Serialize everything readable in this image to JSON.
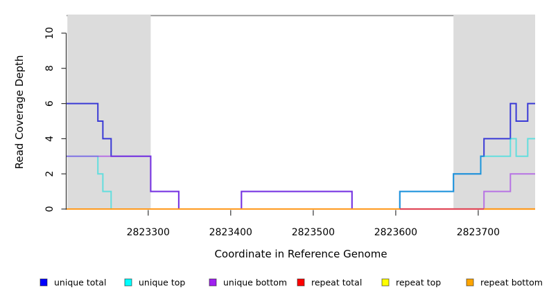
{
  "chart_data": {
    "type": "line",
    "subtype": "step-coverage",
    "title": "",
    "xlabel": "Coordinate in Reference Genome",
    "ylabel": "Read Coverage Depth",
    "xlim": [
      2823201,
      2823769
    ],
    "ylim": [
      0,
      11.06
    ],
    "x_ticks": [
      "2823300",
      "2823400",
      "2823500",
      "2823600",
      "2823700"
    ],
    "x_tick_values": [
      2823300,
      2823400,
      2823500,
      2823600,
      2823700
    ],
    "y_ticks": [
      "0",
      "2",
      "4",
      "6",
      "8",
      "10"
    ],
    "y_tick_values": [
      0,
      2,
      4,
      6,
      8,
      10
    ],
    "grid": false,
    "legend_position": "bottom",
    "max_depth_reference_line": {
      "y": 11,
      "color": "#8C8C8C"
    },
    "shaded_regions": [
      {
        "from": 2823202,
        "to": 2823303,
        "color": "#DCDCDC"
      },
      {
        "from": 2823670,
        "to": 2823769,
        "color": "#DCDCDC"
      }
    ],
    "series": [
      {
        "name": "unique total",
        "legend_color": "#0000FF",
        "line_color": "#2B2BD5",
        "line_opacity": 0.92,
        "step_points": [
          [
            2823201,
            6
          ],
          [
            2823239,
            5
          ],
          [
            2823245,
            4
          ],
          [
            2823255,
            3
          ],
          [
            2823303,
            1
          ],
          [
            2823337,
            0
          ],
          [
            2823413,
            1
          ],
          [
            2823547,
            0
          ],
          [
            2823605,
            1
          ],
          [
            2823670,
            2
          ],
          [
            2823703,
            3
          ],
          [
            2823707,
            4
          ],
          [
            2823739,
            6
          ],
          [
            2823746,
            5
          ],
          [
            2823760,
            6
          ],
          [
            2823769,
            6
          ]
        ]
      },
      {
        "name": "unique top",
        "legend_color": "#00FFFF",
        "line_color": "#00E0E0",
        "line_opacity": 0.55,
        "step_points": [
          [
            2823201,
            3
          ],
          [
            2823239,
            2
          ],
          [
            2823245,
            1
          ],
          [
            2823255,
            0
          ],
          [
            2823605,
            1
          ],
          [
            2823670,
            2
          ],
          [
            2823703,
            3
          ],
          [
            2823739,
            4
          ],
          [
            2823746,
            3
          ],
          [
            2823760,
            4
          ],
          [
            2823769,
            4
          ]
        ]
      },
      {
        "name": "unique bottom",
        "legend_color": "#A020F0",
        "line_color": "#A030E8",
        "line_opacity": 0.62,
        "step_points": [
          [
            2823201,
            3
          ],
          [
            2823303,
            1
          ],
          [
            2823337,
            0
          ],
          [
            2823413,
            1
          ],
          [
            2823547,
            0
          ],
          [
            2823707,
            1
          ],
          [
            2823739,
            2
          ],
          [
            2823769,
            2
          ]
        ]
      },
      {
        "name": "repeat total",
        "legend_color": "#FF0000",
        "line_color": "#E03040",
        "line_opacity": 1,
        "step_points": [
          [
            2823201,
            0
          ],
          [
            2823769,
            0
          ]
        ]
      },
      {
        "name": "repeat top",
        "legend_color": "#FFFF00",
        "line_color": "#F0E040",
        "line_opacity": 1,
        "step_points": [
          [
            2823201,
            0
          ],
          [
            2823769,
            0
          ]
        ]
      },
      {
        "name": "repeat bottom",
        "legend_color": "#FFA500",
        "line_color": "#FF9A1E",
        "line_opacity": 1,
        "step_points": [
          [
            2823201,
            0
          ],
          [
            2823769,
            0
          ]
        ]
      }
    ],
    "baseline_overlays": [
      {
        "from": 2823605,
        "to": 2823707,
        "color": "#E04858"
      },
      {
        "from": 2823707,
        "to": 2823769,
        "color": "#FF9A1E"
      }
    ]
  },
  "legend": {
    "items": [
      {
        "label": "unique total",
        "color": "#0000FF"
      },
      {
        "label": "unique top",
        "color": "#00FFFF"
      },
      {
        "label": "unique bottom",
        "color": "#A020F0"
      },
      {
        "label": "repeat total",
        "color": "#FF0000"
      },
      {
        "label": "repeat top",
        "color": "#FFFF00"
      },
      {
        "label": "repeat bottom",
        "color": "#FFA500"
      }
    ]
  }
}
